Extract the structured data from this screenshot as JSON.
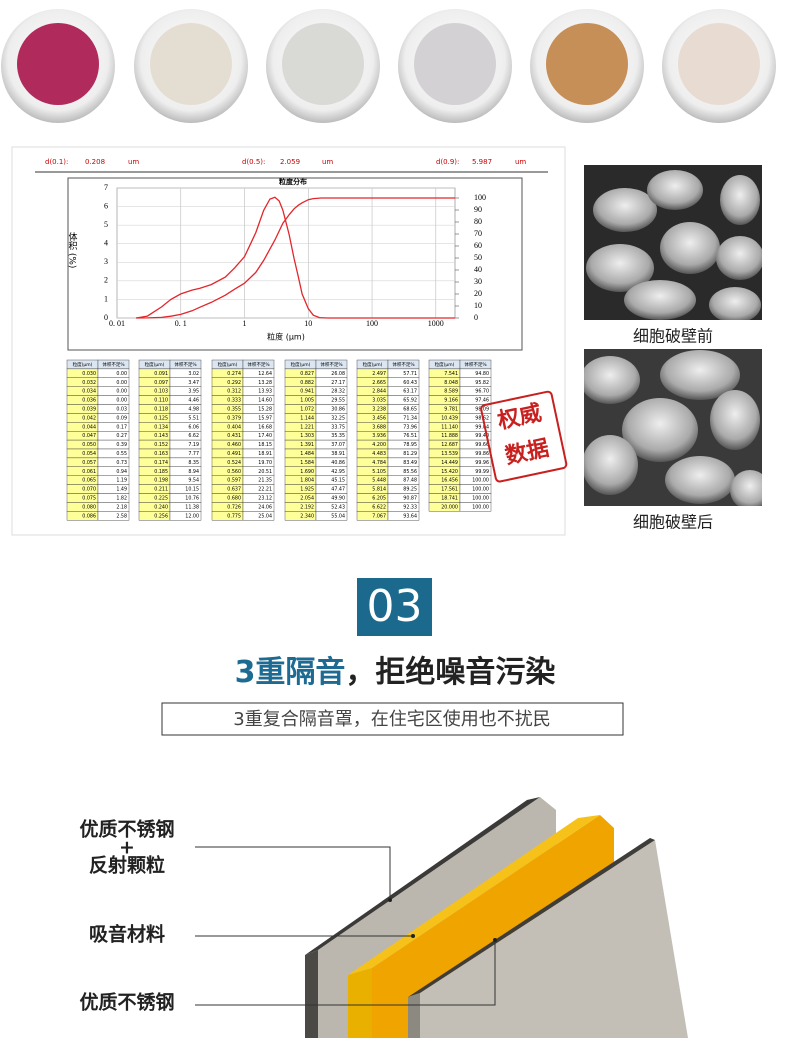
{
  "particle_report": {
    "summary": [
      {
        "label": "d(0.1):",
        "value": 0.208,
        "unit": "um"
      },
      {
        "label": "d(0.5):",
        "value": 2.059,
        "unit": "um"
      },
      {
        "label": "d(0.9):",
        "value": 5.987,
        "unit": "um"
      }
    ],
    "chart": {
      "type": "line",
      "title": "粒度分布",
      "y_label": "体积 (%)",
      "x_label": "粒度 (μm)",
      "xscale": "log",
      "xlim": [
        0.01,
        2000
      ],
      "xticks": [
        {
          "value": 0.01,
          "label": "0. 01"
        },
        {
          "value": 0.1,
          "label": "0. 1"
        },
        1,
        10,
        100,
        1000
      ],
      "ylim": [
        0,
        7
      ],
      "yticks": [
        0,
        1,
        2,
        3,
        4,
        5,
        6,
        7
      ],
      "y2lim": [
        0,
        100
      ],
      "y2ticks": [
        0,
        10,
        20,
        30,
        40,
        50,
        60,
        70,
        80,
        90,
        100
      ],
      "grid": true,
      "series": [
        {
          "color": "#e3262b",
          "x": [
            0.02,
            0.03,
            0.05,
            0.07,
            0.1,
            0.15,
            0.2,
            0.3,
            0.5,
            0.7,
            1,
            1.5,
            2,
            2.5,
            3,
            3.5,
            4,
            5,
            6,
            7,
            8,
            10,
            12,
            15,
            20,
            2000
          ],
          "values": [
            0,
            0.1,
            0.6,
            1.0,
            1.3,
            1.5,
            1.6,
            1.8,
            2.2,
            2.7,
            3.3,
            4.6,
            5.8,
            6.4,
            6.5,
            6.3,
            5.8,
            4.5,
            3.2,
            2.2,
            1.3,
            0.5,
            0.15,
            0.02,
            0,
            0
          ]
        },
        {
          "color": "#e3262b",
          "axis": "y2",
          "x": [
            0.02,
            0.03,
            0.05,
            0.07,
            0.1,
            0.15,
            0.2,
            0.3,
            0.5,
            0.7,
            1,
            1.5,
            2,
            3,
            4,
            5,
            6,
            7,
            8,
            10,
            12,
            16,
            20,
            2000
          ],
          "values": [
            0,
            0.1,
            0.5,
            1.5,
            3,
            6,
            9,
            13,
            19,
            24,
            29,
            38,
            48,
            65,
            79,
            86,
            91,
            94,
            96,
            98.6,
            99.5,
            100,
            100,
            100
          ]
        }
      ]
    },
    "tables": [
      {
        "header": [
          "粒度(μm)",
          "体积不足%"
        ],
        "rows": [
          [
            "0.030",
            "0.00"
          ],
          [
            "0.032",
            "0.00"
          ],
          [
            "0.034",
            "0.00"
          ],
          [
            "0.036",
            "0.00"
          ],
          [
            "0.039",
            "0.03"
          ],
          [
            "0.042",
            "0.09"
          ],
          [
            "0.044",
            "0.17"
          ],
          [
            "0.047",
            "0.27"
          ],
          [
            "0.050",
            "0.39"
          ],
          [
            "0.054",
            "0.55"
          ],
          [
            "0.057",
            "0.73"
          ],
          [
            "0.061",
            "0.94"
          ],
          [
            "0.065",
            "1.19"
          ],
          [
            "0.070",
            "1.49"
          ],
          [
            "0.075",
            "1.82"
          ],
          [
            "0.080",
            "2.18"
          ],
          [
            "0.086",
            "2.58"
          ]
        ]
      },
      {
        "header": [
          "粒度(μm)",
          "体积不足%"
        ],
        "rows": [
          [
            "0.091",
            "3.02"
          ],
          [
            "0.097",
            "3.47"
          ],
          [
            "0.103",
            "3.95"
          ],
          [
            "0.110",
            "4.46"
          ],
          [
            "0.118",
            "4.98"
          ],
          [
            "0.125",
            "5.51"
          ],
          [
            "0.134",
            "6.06"
          ],
          [
            "0.143",
            "6.62"
          ],
          [
            "0.152",
            "7.19"
          ],
          [
            "0.163",
            "7.77"
          ],
          [
            "0.174",
            "8.35"
          ],
          [
            "0.185",
            "8.94"
          ],
          [
            "0.198",
            "9.54"
          ],
          [
            "0.211",
            "10.15"
          ],
          [
            "0.225",
            "10.76"
          ],
          [
            "0.240",
            "11.38"
          ],
          [
            "0.256",
            "12.00"
          ]
        ]
      },
      {
        "header": [
          "粒度(μm)",
          "体积不足%"
        ],
        "rows": [
          [
            "0.274",
            "12.64"
          ],
          [
            "0.292",
            "13.28"
          ],
          [
            "0.312",
            "13.93"
          ],
          [
            "0.333",
            "14.60"
          ],
          [
            "0.355",
            "15.28"
          ],
          [
            "0.379",
            "15.97"
          ],
          [
            "0.404",
            "16.68"
          ],
          [
            "0.431",
            "17.40"
          ],
          [
            "0.460",
            "18.15"
          ],
          [
            "0.491",
            "18.91"
          ],
          [
            "0.524",
            "19.70"
          ],
          [
            "0.560",
            "20.51"
          ],
          [
            "0.597",
            "21.35"
          ],
          [
            "0.637",
            "22.21"
          ],
          [
            "0.680",
            "23.12"
          ],
          [
            "0.726",
            "24.06"
          ],
          [
            "0.775",
            "25.04"
          ]
        ]
      },
      {
        "header": [
          "粒度(μm)",
          "体积不足%"
        ],
        "rows": [
          [
            "0.827",
            "26.08"
          ],
          [
            "0.882",
            "27.17"
          ],
          [
            "0.941",
            "28.32"
          ],
          [
            "1.005",
            "29.55"
          ],
          [
            "1.072",
            "30.86"
          ],
          [
            "1.144",
            "32.25"
          ],
          [
            "1.221",
            "33.75"
          ],
          [
            "1.303",
            "35.35"
          ],
          [
            "1.391",
            "37.07"
          ],
          [
            "1.484",
            "38.91"
          ],
          [
            "1.584",
            "40.86"
          ],
          [
            "1.690",
            "42.95"
          ],
          [
            "1.804",
            "45.15"
          ],
          [
            "1.925",
            "47.47"
          ],
          [
            "2.054",
            "49.90"
          ],
          [
            "2.192",
            "52.43"
          ],
          [
            "2.340",
            "55.04"
          ]
        ]
      },
      {
        "header": [
          "粒度(μm)",
          "体积不足%"
        ],
        "rows": [
          [
            "2.497",
            "57.71"
          ],
          [
            "2.665",
            "60.43"
          ],
          [
            "2.844",
            "63.17"
          ],
          [
            "3.035",
            "65.92"
          ],
          [
            "3.238",
            "68.65"
          ],
          [
            "3.456",
            "71.34"
          ],
          [
            "3.688",
            "73.96"
          ],
          [
            "3.936",
            "76.51"
          ],
          [
            "4.200",
            "78.95"
          ],
          [
            "4.483",
            "81.29"
          ],
          [
            "4.784",
            "83.49"
          ],
          [
            "5.105",
            "85.56"
          ],
          [
            "5.448",
            "87.48"
          ],
          [
            "5.814",
            "89.25"
          ],
          [
            "6.205",
            "90.87"
          ],
          [
            "6.622",
            "92.33"
          ],
          [
            "7.067",
            "93.64"
          ]
        ]
      },
      {
        "header": [
          "粒度(μm)",
          "体积不足%"
        ],
        "rows": [
          [
            "7.541",
            "94.80"
          ],
          [
            "8.048",
            "95.82"
          ],
          [
            "8.589",
            "96.70"
          ],
          [
            "9.166",
            "97.46"
          ],
          [
            "9.781",
            "98.09"
          ],
          [
            "10.439",
            "98.62"
          ],
          [
            "11.140",
            "99.04"
          ],
          [
            "11.888",
            "99.40"
          ],
          [
            "12.687",
            "99.66"
          ],
          [
            "13.539",
            "99.86"
          ],
          [
            "14.449",
            "99.96"
          ],
          [
            "15.420",
            "99.99"
          ],
          [
            "16.456",
            "100.00"
          ],
          [
            "17.561",
            "100.00"
          ],
          [
            "18.741",
            "100.00"
          ],
          [
            "20.000",
            "100.00"
          ]
        ]
      }
    ],
    "stamp": [
      "权威",
      "数据"
    ]
  },
  "micrographs": [
    {
      "caption": "细胞破壁前"
    },
    {
      "caption": "细胞破壁后"
    }
  ],
  "section": {
    "number": "03",
    "heading_highlight": "3重隔音",
    "heading_rest": "，拒绝噪音污染",
    "subtitle": "3重复合隔音罩，在住宅区使用也不扰民"
  },
  "layers": [
    {
      "lines": [
        "优质不锈钢",
        "+",
        "反射颗粒"
      ]
    },
    {
      "lines": [
        "吸音材料"
      ]
    },
    {
      "lines": [
        "优质不锈钢"
      ]
    }
  ]
}
